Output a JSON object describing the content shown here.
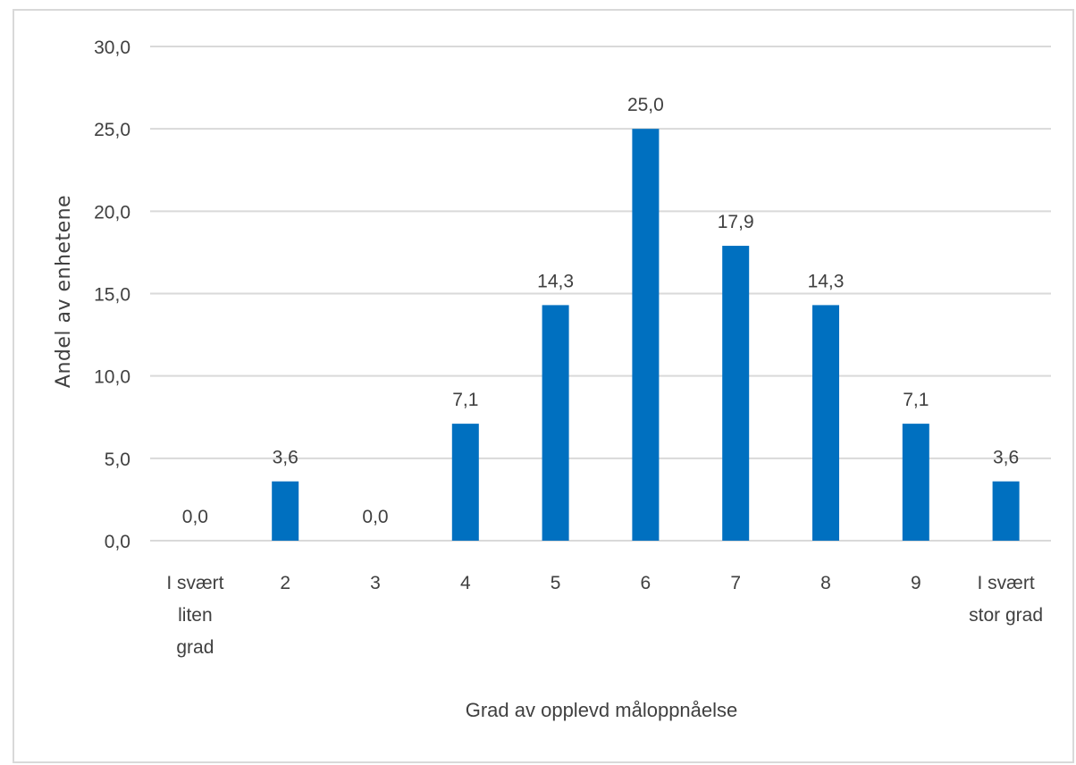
{
  "chart_data": {
    "type": "bar",
    "categories": [
      [
        "I svært",
        "liten",
        "grad"
      ],
      [
        "2"
      ],
      [
        "3"
      ],
      [
        "4"
      ],
      [
        "5"
      ],
      [
        "6"
      ],
      [
        "7"
      ],
      [
        "8"
      ],
      [
        "9"
      ],
      [
        "I svært",
        "stor grad"
      ]
    ],
    "values": [
      0.0,
      3.6,
      0.0,
      7.1,
      14.3,
      25.0,
      17.9,
      14.3,
      7.1,
      3.6
    ],
    "value_labels": [
      "0,0",
      "3,6",
      "0,0",
      "7,1",
      "14,3",
      "25,0",
      "17,9",
      "14,3",
      "7,1",
      "3,6"
    ],
    "title": "",
    "xlabel": "Grad av opplevd måloppnåelse",
    "ylabel": "Andel av enhetene",
    "ylim": [
      0,
      30
    ],
    "yticks": [
      0,
      5,
      10,
      15,
      20,
      25,
      30
    ],
    "ytick_labels": [
      "0,0",
      "5,0",
      "10,0",
      "15,0",
      "20,0",
      "25,0",
      "30,0"
    ],
    "grid": true,
    "legend": "none",
    "colors": {
      "bar": "#0070c0",
      "grid": "#d9d9d9",
      "text": "#404040"
    }
  }
}
